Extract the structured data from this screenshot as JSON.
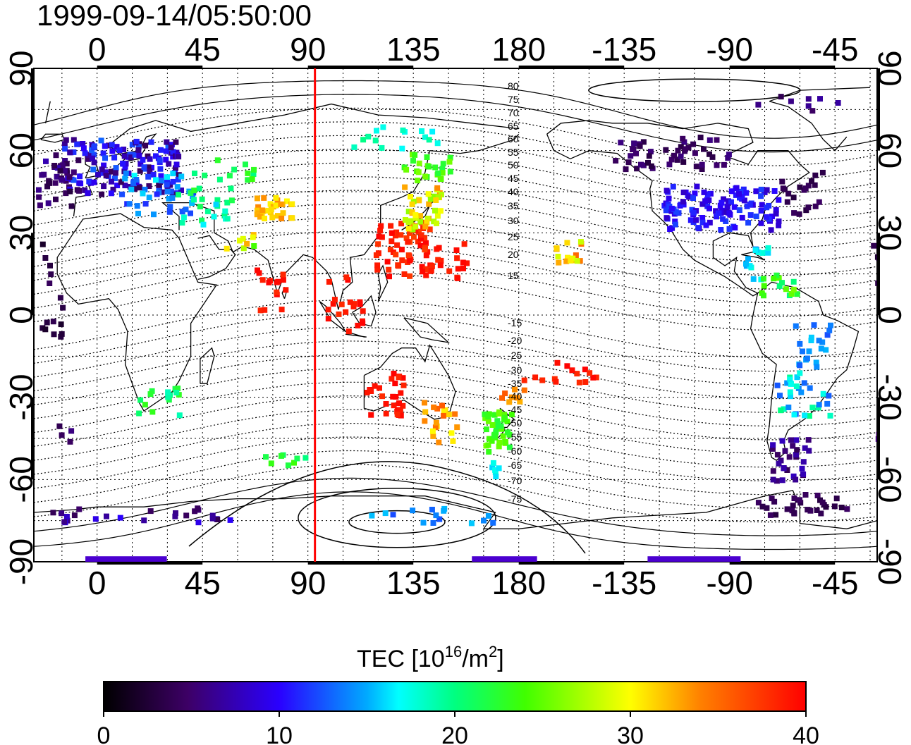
{
  "title": "1999-09-14/05:50:00",
  "map": {
    "top_longitude_labels": [
      "0",
      "45",
      "90",
      "135",
      "180",
      "-135",
      "-90",
      "-45"
    ],
    "bottom_longitude_labels": [
      "0",
      "45",
      "90",
      "135",
      "180",
      "-135",
      "-90",
      "-45"
    ],
    "left_latitude_labels": [
      "90",
      "60",
      "30",
      "0",
      "-30",
      "-60",
      "-90"
    ],
    "right_latitude_labels": [
      "90",
      "60",
      "30",
      "0",
      "-30",
      "-60",
      "-90"
    ],
    "magnetic_latitude_labels": [
      "80",
      "75",
      "70",
      "65",
      "60",
      "55",
      "50",
      "45",
      "40",
      "35",
      "30",
      "25",
      "20",
      "15",
      "-15",
      "-20",
      "-25",
      "-30",
      "-35",
      "-40",
      "-45",
      "-50",
      "-55",
      "-60",
      "-65",
      "-70",
      "-75"
    ],
    "marker_longitude": 93,
    "marker_color": "#ff0000"
  },
  "colorbar": {
    "label_main": "TEC  [10",
    "label_sup": "16",
    "label_mid": "/m",
    "label_sup2": "2",
    "label_end": "]",
    "ticks": [
      "0",
      "10",
      "20",
      "30",
      "40"
    ],
    "min": 0,
    "max": 40,
    "colors": [
      "#000000",
      "#4b0082",
      "#0000ff",
      "#00ffff",
      "#00ff00",
      "#ffff00",
      "#ff8000",
      "#ff0000"
    ]
  }
}
